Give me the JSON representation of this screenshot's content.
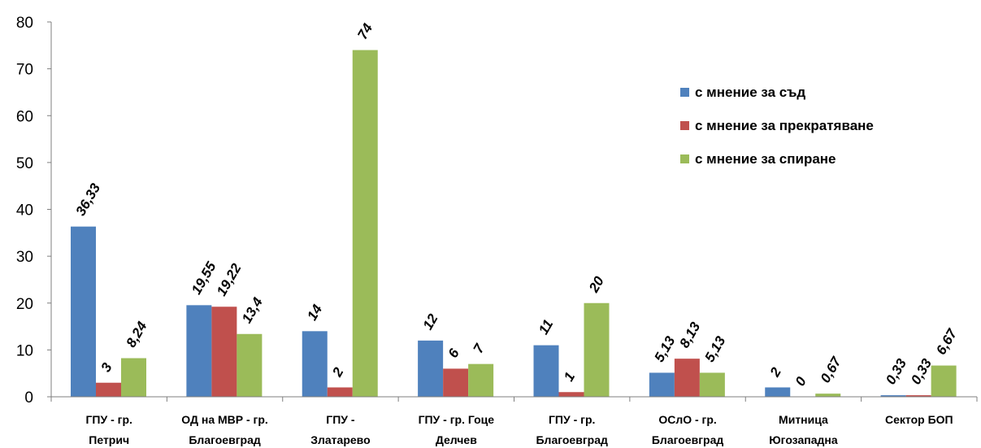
{
  "chart_data": {
    "type": "bar",
    "categories": [
      [
        "ГПУ - гр.",
        "Петрич"
      ],
      [
        "ОД на МВР - гр.",
        "Благоевград"
      ],
      [
        "ГПУ -",
        "Златарево"
      ],
      [
        "ГПУ - гр. Гоце",
        "Делчев"
      ],
      [
        "ГПУ - гр.",
        "Благоевград"
      ],
      [
        "ОСлО - гр.",
        "Благоевград"
      ],
      [
        "Митница",
        "Югозападна"
      ],
      [
        "Сектор БОП"
      ]
    ],
    "series": [
      {
        "name": "с мнение за съд",
        "color": "#4F81BD",
        "values": [
          36.33,
          19.55,
          14,
          12,
          11,
          5.13,
          2,
          0.33
        ],
        "labels": [
          "36,33",
          "19,55",
          "14",
          "12",
          "11",
          "5,13",
          "2",
          "0,33"
        ]
      },
      {
        "name": "с мнение за прекратяване",
        "color": "#C0504D",
        "values": [
          3,
          19.22,
          2,
          6,
          1,
          8.13,
          0,
          0.33
        ],
        "labels": [
          "3",
          "19,22",
          "2",
          "6",
          "1",
          "8,13",
          "0",
          "0,33"
        ]
      },
      {
        "name": "с мнение за спиране",
        "color": "#9BBB59",
        "values": [
          8.24,
          13.4,
          74,
          7,
          20,
          5.13,
          0.67,
          6.67
        ],
        "labels": [
          "8,24",
          "13,4",
          "74",
          "7",
          "20",
          "5,13",
          "0,67",
          "6,67"
        ]
      }
    ],
    "ylim": [
      0,
      80
    ],
    "yticks": [
      "0",
      "10",
      "20",
      "30",
      "40",
      "50",
      "60",
      "70",
      "80"
    ],
    "grid": false,
    "legend_position": "right"
  }
}
